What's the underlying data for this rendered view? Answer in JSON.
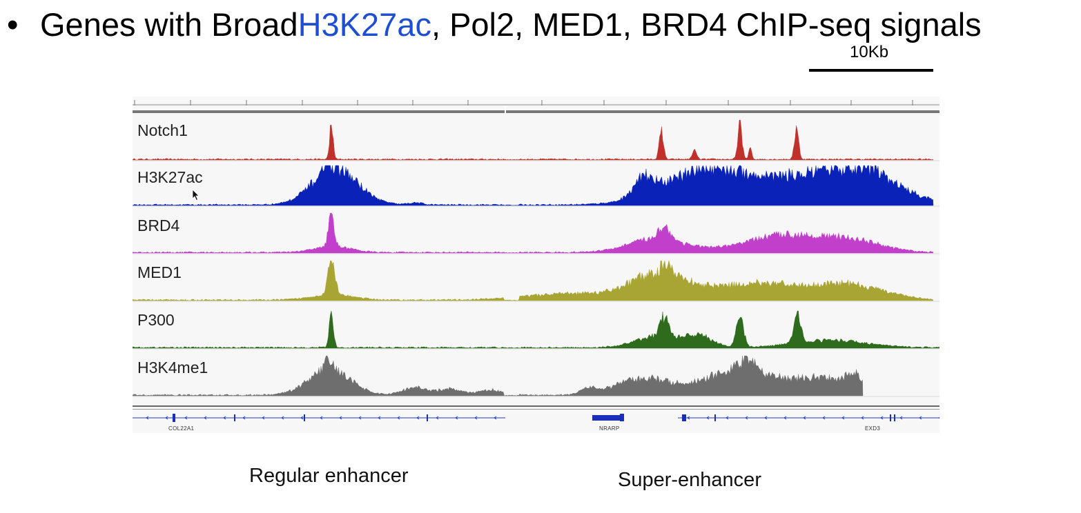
{
  "slide": {
    "bullet": "•",
    "title_before": "Genes with Broad ",
    "title_highlight": "H3K27ac",
    "title_after": ", Pol2, MED1, BRD4 ChIP-seq signals",
    "highlight_color": "#1f4fd1"
  },
  "scale": {
    "label": "10Kb"
  },
  "tracks": [
    {
      "name": "Notch1",
      "color": "#c0312b"
    },
    {
      "name": "H3K27ac",
      "color": "#0b22b8"
    },
    {
      "name": "BRD4",
      "color": "#c23fcb"
    },
    {
      "name": "MED1",
      "color": "#a9a535"
    },
    {
      "name": "P300",
      "color": "#2f6b1c"
    },
    {
      "name": "H3K4me1",
      "color": "#6e6e6e"
    }
  ],
  "genes": [
    "COL22A1",
    "NRARP",
    "EXD3"
  ],
  "captions": {
    "left": "Regular enhancer",
    "right": "Super-enhancer"
  },
  "icons": {
    "cursor": "mouse-pointer-icon"
  }
}
